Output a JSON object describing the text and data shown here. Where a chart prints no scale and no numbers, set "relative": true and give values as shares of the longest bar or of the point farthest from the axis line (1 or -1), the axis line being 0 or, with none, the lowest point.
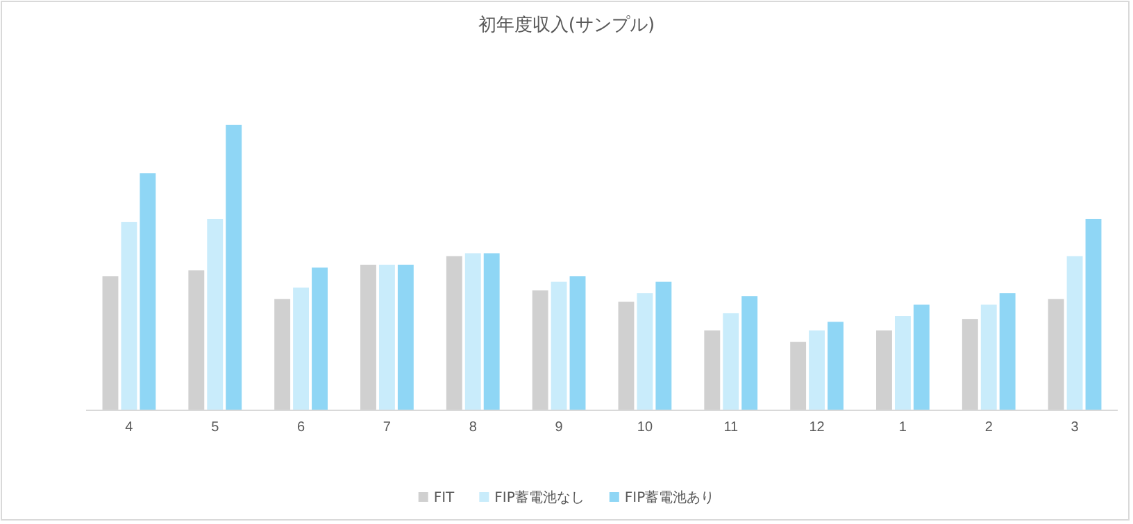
{
  "chart_data": {
    "type": "bar",
    "title": "初年度収入(サンプル)",
    "relative": true,
    "legend": "bottom",
    "categories": [
      "4",
      "5",
      "6",
      "7",
      "8",
      "9",
      "10",
      "11",
      "12",
      "1",
      "2",
      "3"
    ],
    "series": [
      {
        "name": "FIT",
        "color": "#d0d0d0",
        "values": [
          0.47,
          0.49,
          0.39,
          0.51,
          0.54,
          0.42,
          0.38,
          0.28,
          0.24,
          0.28,
          0.32,
          0.39
        ]
      },
      {
        "name": "FIP蓄電池なし",
        "color": "#c9ecfb",
        "values": [
          0.66,
          0.67,
          0.43,
          0.51,
          0.55,
          0.45,
          0.41,
          0.34,
          0.28,
          0.33,
          0.37,
          0.54
        ]
      },
      {
        "name": "FIP蓄電池あり",
        "color": "#8fd6f5",
        "values": [
          0.83,
          1,
          0.5,
          0.51,
          0.55,
          0.47,
          0.45,
          0.4,
          0.31,
          0.37,
          0.41,
          0.67
        ]
      }
    ]
  }
}
